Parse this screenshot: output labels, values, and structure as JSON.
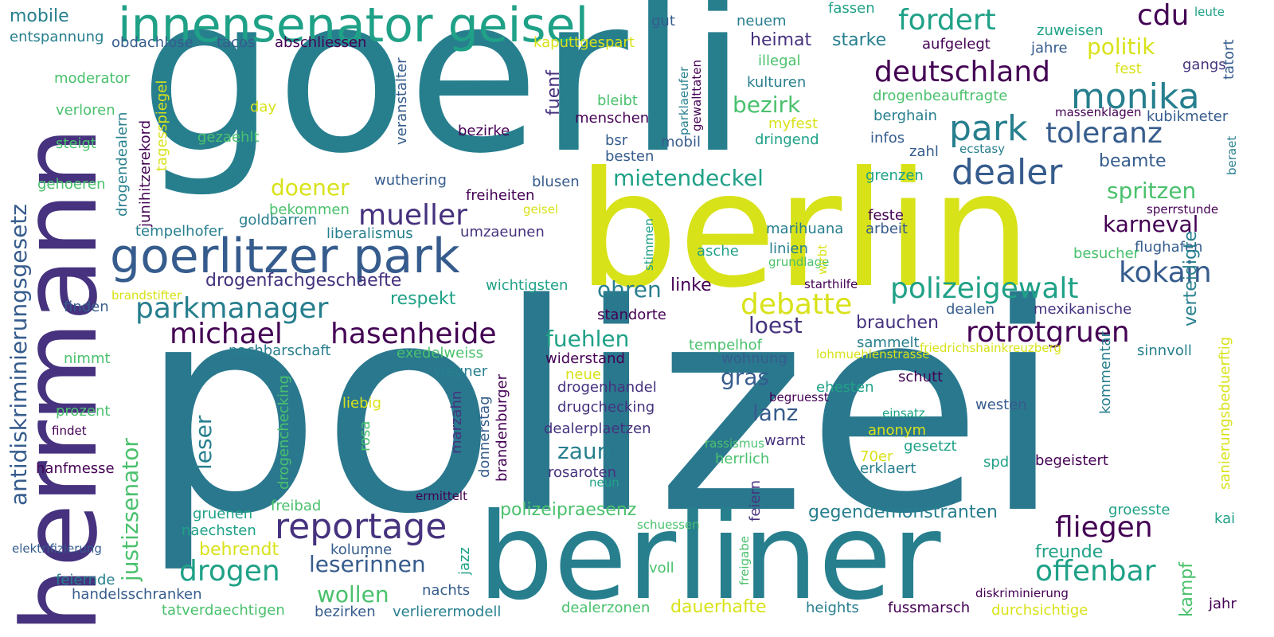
{
  "colors": {
    "dark_purple": "#440154",
    "indigo": "#46327e",
    "blue": "#365c8d",
    "teal": "#277f8e",
    "green_teal": "#1fa187",
    "green": "#4ac16d",
    "lime": "#a0da39",
    "yellow": "#d8e219",
    "background": "#ffffff"
  },
  "words": {
    "goerli": "goerli",
    "polizei": "polizei",
    "berlin": "berlin",
    "berliner": "berliner",
    "herrmann": "herrmann",
    "innensenator_geisel": "innensenator geisel",
    "goerlitzer_park": "goerlitzer park",
    "mobile": "mobile",
    "entspannung": "entspannung",
    "fordert": "fordert",
    "cdu": "cdu",
    "leute": "leute",
    "zuweisen": "zuweisen",
    "fassen": "fassen",
    "gut": "gut",
    "neuem": "neuem",
    "obdachlose": "obdachlose",
    "tacos": "tacos",
    "abschliessen": "abschliessen",
    "kaputtgespart": "kaputtgespart",
    "heimat": "heimat",
    "starke": "starke",
    "aufgelegt": "aufgelegt",
    "politik": "politik",
    "jahre": "jahre",
    "fest": "fest",
    "gangs": "gangs",
    "tatort": "tatort",
    "illegal": "illegal",
    "deutschland": "deutschland",
    "moderator": "moderator",
    "veranstalter": "veranstalter",
    "kulturen": "kulturen",
    "monika": "monika",
    "verloren": "verloren",
    "day": "day",
    "bleibt": "bleibt",
    "drogenbeauftragte": "drogenbeauftragte",
    "massenklagen": "massenklagen",
    "kubikmeter": "kubikmeter",
    "bezirk": "bezirk",
    "menschen": "menschen",
    "myfest": "myfest",
    "berghain": "berghain",
    "park": "park",
    "toleranz": "toleranz",
    "gezaehlt": "gezaehlt",
    "bezirke": "bezirke",
    "bsr": "bsr",
    "mobil": "mobil",
    "dringend": "dringend",
    "infos": "infos",
    "zahl": "zahl",
    "ecstasy": "ecstasy",
    "beraet": "beraet",
    "steigt": "steigt",
    "besten": "besten",
    "dealer": "dealer",
    "beamte": "beamte",
    "wuthering": "wuthering",
    "blusen": "blusen",
    "mietendeckel": "mietendeckel",
    "grenzen": "grenzen",
    "gehoeren": "gehoeren",
    "doener": "doener",
    "freiheiten": "freiheiten",
    "spritzen": "spritzen",
    "bekommen": "bekommen",
    "geisel": "geisel",
    "mueller": "mueller",
    "feste": "feste",
    "sperrstunde": "sperrstunde",
    "goldbarren": "goldbarren",
    "karneval": "karneval",
    "tempelhofer": "tempelhofer",
    "liberalismus": "liberalismus",
    "umzaeunen": "umzaeunen",
    "marihuana": "marihuana",
    "arbeit": "arbeit",
    "flughafen": "flughafen",
    "asche": "asche",
    "linien": "linien",
    "besucher": "besucher",
    "grundlage": "grundlage",
    "kokain": "kokain",
    "drogenfachgeschaefte": "drogenfachgeschaefte",
    "wichtigsten": "wichtigsten",
    "starthilfe": "starthilfe",
    "polizeigewalt": "polizeigewalt",
    "brandstifter": "brandstifter",
    "parkmanager": "parkmanager",
    "respekt": "respekt",
    "ohren": "ohren",
    "linke": "linke",
    "debatte": "debatte",
    "finden": "finden",
    "standorte": "standorte",
    "dealen": "dealen",
    "mexikanische": "mexikanische",
    "michael": "michael",
    "hasenheide": "hasenheide",
    "loest": "loest",
    "brauchen": "brauchen",
    "rotrotgruen": "rotrotgruen",
    "fuehlen": "fuehlen",
    "nachbarschaft": "nachbarschaft",
    "tempelhof": "tempelhof",
    "sammelt": "sammelt",
    "friedrichshainkreuzberg": "friedrichshainkreuzberg",
    "exedelweiss": "exedelweiss",
    "lohmuehlenstrasse": "lohmuehlenstrasse",
    "sinnvoll": "sinnvoll",
    "nimmt": "nimmt",
    "widerstand": "widerstand",
    "wohnung": "wohnung",
    "wegner": "wegner",
    "neue": "neue",
    "gras": "gras",
    "schutt": "schutt",
    "ehesten": "ehesten",
    "drogenhandel": "drogenhandel",
    "begruesst": "begruesst",
    "liebig": "liebig",
    "westen": "westen",
    "prozent": "prozent",
    "drugchecking": "drugchecking",
    "lanz": "lanz",
    "einsatz": "einsatz",
    "findet": "findet",
    "dealerplaetzen": "dealerplaetzen",
    "anonym": "anonym",
    "warnt": "warnt",
    "rassismus": "rassismus",
    "zaun": "zaun",
    "herrlich": "herrlich",
    "gesetzt": "gesetzt",
    "spd": "spd",
    "begeistert": "begeistert",
    "hanfmesse": "hanfmesse",
    "rosaroten": "rosaroten",
    "70er": "70er",
    "erklaert": "erklaert",
    "neun": "neun",
    "ermittelt": "ermittelt",
    "polizeipraesenz": "polizeipraesenz",
    "gruenen": "gruenen",
    "freibad": "freibad",
    "groesste": "groesste",
    "gegendemonstranten": "gegendemonstranten",
    "reportage": "reportage",
    "naechsten": "naechsten",
    "schuessen": "schuessen",
    "kai": "kai",
    "fliegen": "fliegen",
    "elektrifizierung": "elektrifizierung",
    "behrendt": "behrendt",
    "kolumne": "kolumne",
    "freunde": "freunde",
    "drogen": "drogen",
    "leserinnen": "leserinnen",
    "offenbar": "offenbar",
    "feiernde": "feiernde",
    "voll": "voll",
    "handelsschranken": "handelsschranken",
    "wollen": "wollen",
    "nachts": "nachts",
    "diskriminierung": "diskriminierung",
    "tatverdaechtigen": "tatverdaechtigen",
    "heights": "heights",
    "fussmarsch": "fussmarsch",
    "jahr": "jahr",
    "bezirken": "bezirken",
    "verlierermodell": "verlierermodell",
    "dealerzonen": "dealerzonen",
    "dauerhafte": "dauerhafte",
    "durchsichtige": "durchsichtige",
    "antidiskriminierungsgesetz": "antidiskriminierungsgesetz",
    "justizsenator": "justizsenator",
    "tagesspiegel": "tagesspiegel",
    "junihitzerekord": "junihitzerekord",
    "drogendealern": "drogendealern",
    "drogenchecking": "drogenchecking",
    "rosa": "rosa",
    "leser": "leser",
    "jazz": "jazz",
    "marzahn": "marzahn",
    "donnerstag": "donnerstag",
    "brandenburger": "brandenburger",
    "fuenf": "fuenf",
    "muell": "muell",
    "parklaeufer": "parklaeufer",
    "gewalttaten": "gewalttaten",
    "stimmen": "stimmen",
    "wirbt": "wirbt",
    "feiern": "feiern",
    "freigabe": "freigabe",
    "kommentar": "kommentar",
    "kampf": "kampf",
    "verteidigte": "verteidigte",
    "sanierungsbeduerftig": "sanierungsbeduerftig"
  }
}
